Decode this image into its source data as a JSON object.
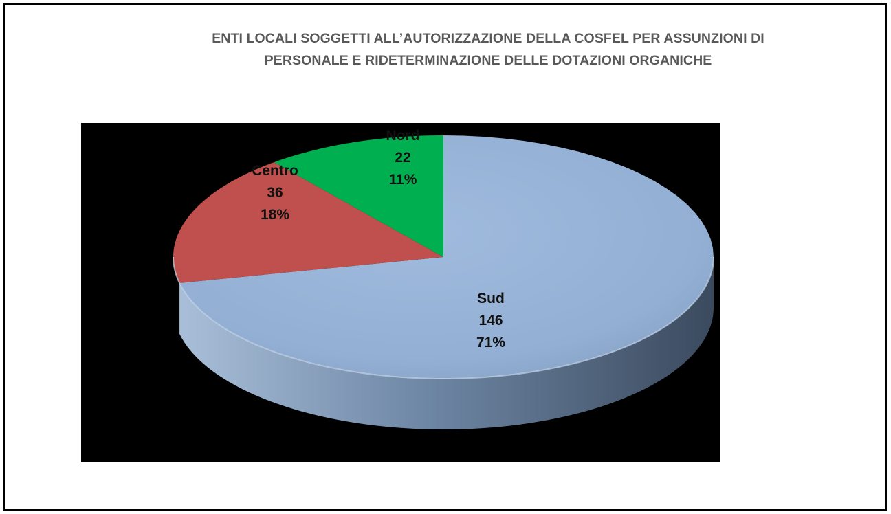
{
  "title_lines": [
    "ENTI LOCALI SOGGETTI ALL’AUTORIZZAZIONE DELLA COSFEL PER ASSUNZIONI DI",
    "PERSONALE E RIDETERMINAZIONE DELLE DOTAZIONI ORGANICHE"
  ],
  "chart_data": {
    "type": "pie",
    "title": "ENTI LOCALI SOGGETTI ALL’AUTORIZZAZIONE DELLA COSFEL PER ASSUNZIONI DI PERSONALE E RIDETERMINAZIONE DELLE DOTAZIONI ORGANICHE",
    "style": "3d",
    "background": "#000000",
    "slices": [
      {
        "label": "Nord",
        "value": 22,
        "percent": "11%",
        "color": "#00B050"
      },
      {
        "label": "Centro",
        "value": 36,
        "percent": "18%",
        "color": "#C0504D"
      },
      {
        "label": "Sud",
        "value": 146,
        "percent": "71%",
        "color": "#95B3D7"
      }
    ]
  }
}
